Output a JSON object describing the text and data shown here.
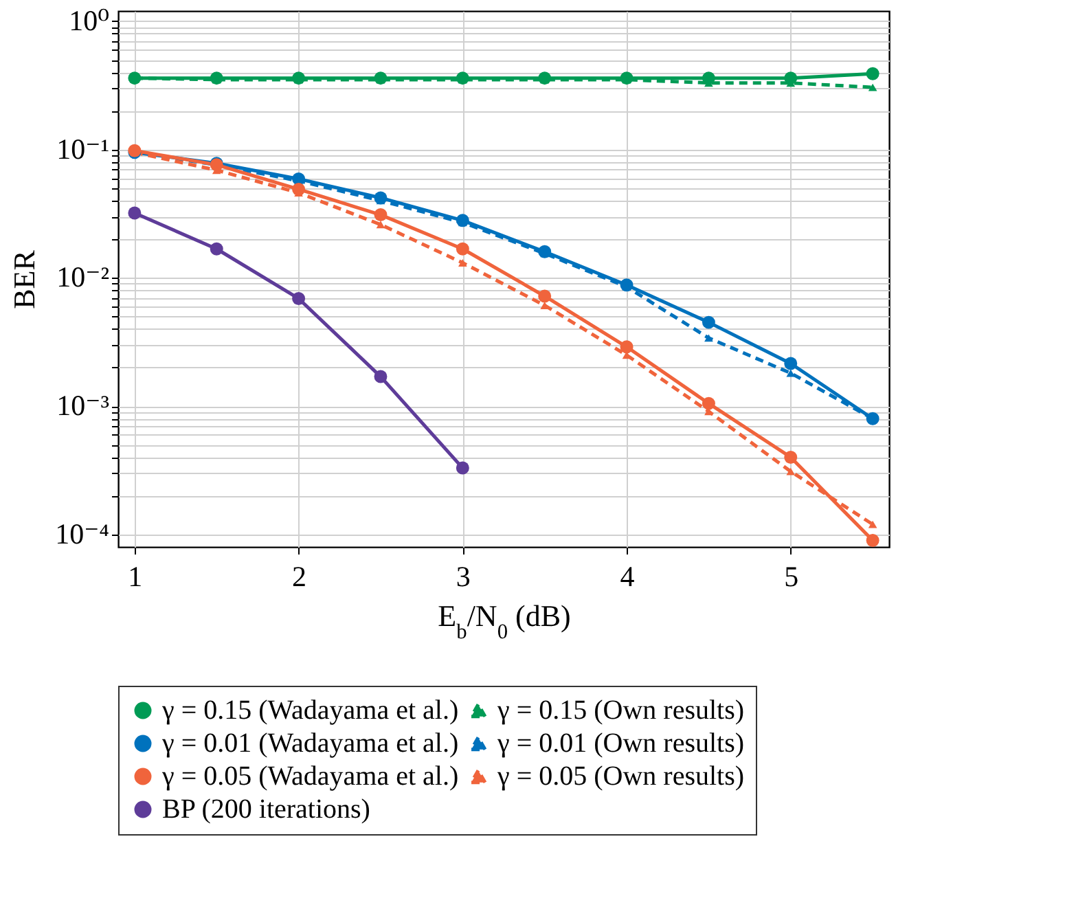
{
  "chart_data": {
    "type": "line",
    "xlabel": "E$_{b}$/N$_{0}$ (dB)",
    "ylabel": "BER",
    "log": "y",
    "grid": true,
    "legend": "bottom",
    "marker": "circle",
    "line_style": "solid",
    "xlim": [
      0.9,
      5.6
    ],
    "xticks": [
      1,
      2,
      3,
      4,
      5
    ],
    "ylim": [
      8e-05,
      1.2
    ],
    "yticks": [
      {
        "value": 1,
        "label": "10⁰"
      },
      {
        "value": 0.1,
        "label": "10⁻¹"
      },
      {
        "value": 0.01,
        "label": "10⁻²"
      },
      {
        "value": 0.001,
        "label": "10⁻³"
      },
      {
        "value": 0.0001,
        "label": "10⁻⁴"
      },
      {
        "value": 0.9,
        "label": null
      },
      {
        "value": 0.8,
        "label": null
      },
      {
        "value": 0.7,
        "label": null
      },
      {
        "value": 0.6,
        "label": null
      },
      {
        "value": 0.5,
        "label": null
      },
      {
        "value": 0.4,
        "label": null
      },
      {
        "value": 0.3,
        "label": null
      },
      {
        "value": 0.2,
        "label": null
      },
      {
        "value": 0.09,
        "label": null
      },
      {
        "value": 0.08,
        "label": null
      },
      {
        "value": 0.07,
        "label": null
      },
      {
        "value": 0.06,
        "label": null
      },
      {
        "value": 0.05,
        "label": null
      },
      {
        "value": 0.04,
        "label": null
      },
      {
        "value": 0.03,
        "label": null
      },
      {
        "value": 0.02,
        "label": null
      },
      {
        "value": 0.009,
        "label": null
      },
      {
        "value": 0.008,
        "label": null
      },
      {
        "value": 0.007,
        "label": null
      },
      {
        "value": 0.006,
        "label": null
      },
      {
        "value": 0.005,
        "label": null
      },
      {
        "value": 0.004,
        "label": null
      },
      {
        "value": 0.003,
        "label": null
      },
      {
        "value": 0.002,
        "label": null
      },
      {
        "value": 0.0009,
        "label": null
      },
      {
        "value": 0.0008,
        "label": null
      },
      {
        "value": 0.0007,
        "label": null
      },
      {
        "value": 0.0006,
        "label": null
      },
      {
        "value": 0.0005,
        "label": null
      },
      {
        "value": 0.0004,
        "label": null
      },
      {
        "value": 0.0003,
        "label": null
      },
      {
        "value": 0.0002,
        "label": null
      }
    ],
    "x": [
      1,
      1.5,
      2,
      2.5,
      3,
      3.5,
      4,
      4.5,
      5,
      5.5
    ],
    "series": [
      {
        "name": "γ = 0.15 (Wadayama et al.)",
        "color": "#009b55",
        "values": [
          0.36,
          0.36,
          0.36,
          0.36,
          0.36,
          0.36,
          0.36,
          0.36,
          0.36,
          0.39
        ]
      },
      {
        "name": "γ = 0.15 (Own results)",
        "color": "#009b55",
        "line_style": "dashed",
        "marker": "triangle",
        "values": [
          0.36,
          0.35,
          0.35,
          0.35,
          0.35,
          0.35,
          0.35,
          0.33,
          0.33,
          0.305
        ]
      },
      {
        "name": "γ = 0.01 (Wadayama et al.)",
        "color": "#0072bd",
        "values": [
          0.095,
          0.078,
          0.059,
          0.042,
          0.028,
          0.016,
          0.0088,
          0.0045,
          0.00215,
          0.0008
        ]
      },
      {
        "name": "γ = 0.01 (Own results)",
        "color": "#0072bd",
        "line_style": "dashed",
        "marker": "triangle",
        "values": [
          0.095,
          0.076,
          0.057,
          0.04,
          0.027,
          0.0155,
          0.0085,
          0.0034,
          0.00181,
          0.0008
        ]
      },
      {
        "name": "γ = 0.05 (Wadayama et al.)",
        "color": "#f0643c",
        "values": [
          0.098,
          0.076,
          0.049,
          0.031,
          0.0168,
          0.0072,
          0.0029,
          0.00105,
          0.0004,
          9e-05
        ]
      },
      {
        "name": "γ = 0.05 (Own results)",
        "color": "#f0643c",
        "line_style": "dashed",
        "marker": "triangle",
        "values": [
          0.095,
          0.069,
          0.046,
          0.026,
          0.0131,
          0.0061,
          0.0025,
          0.00091,
          0.00031,
          0.00012
        ]
      },
      {
        "name": "BP (200 iterations)",
        "color": "#5e3c99",
        "x": [
          1,
          1.5,
          2,
          2.5,
          3
        ],
        "values": [
          0.032,
          0.0168,
          0.0069,
          0.0017,
          0.00033
        ]
      }
    ]
  }
}
